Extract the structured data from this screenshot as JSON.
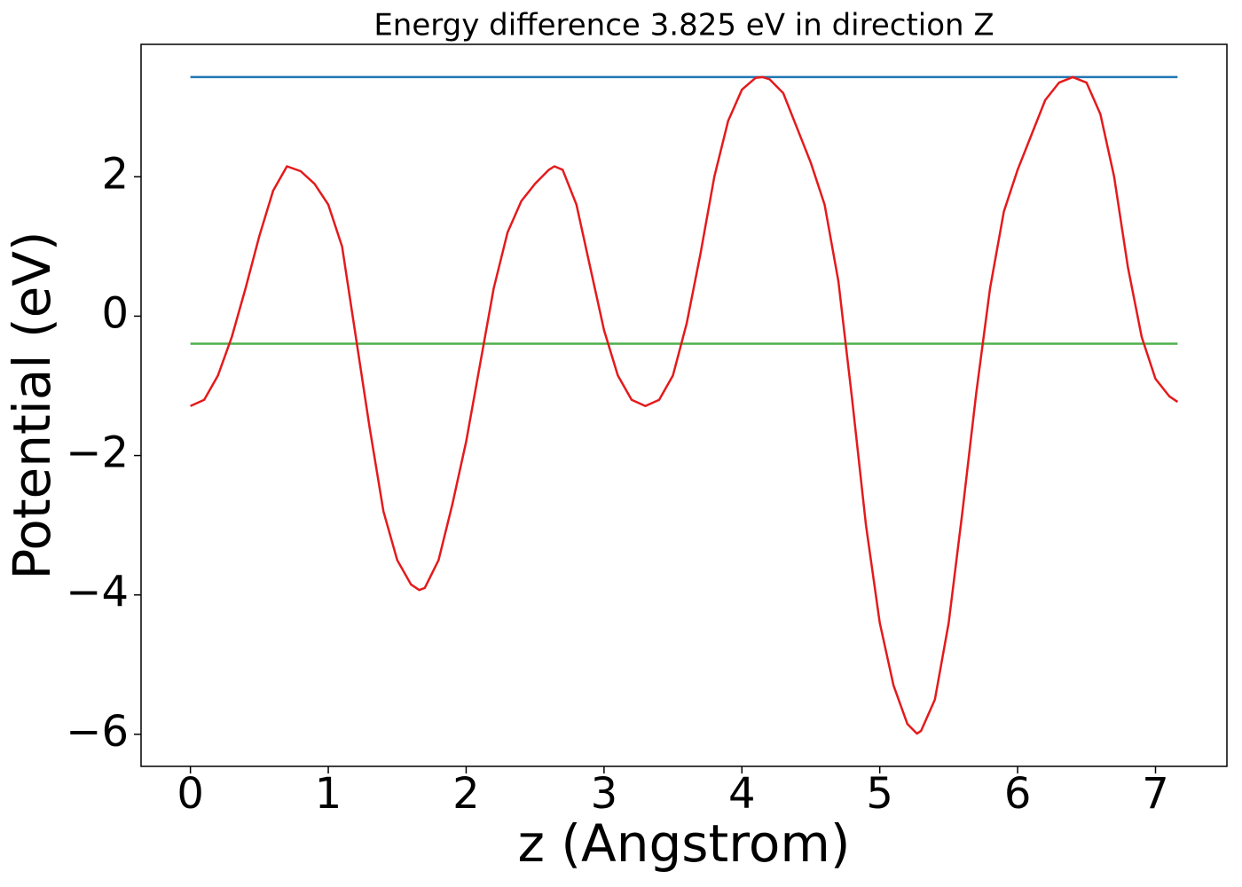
{
  "chart_data": {
    "type": "line",
    "title": "Energy difference 3.825 eV in direction Z",
    "xlabel": "z (Angstrom)",
    "ylabel": "Potential (eV)",
    "xlim": [
      -0.358,
      7.518
    ],
    "ylim": [
      -6.46,
      3.9
    ],
    "xticks": [
      0,
      1,
      2,
      3,
      4,
      5,
      6,
      7
    ],
    "yticks": [
      {
        "value": -6,
        "label": "−6"
      },
      {
        "value": -4,
        "label": "−4"
      },
      {
        "value": -2,
        "label": "−2"
      },
      0,
      2
    ],
    "series": [
      {
        "color": "#1f77b4",
        "x": [
          0,
          7.16
        ],
        "values": [
          3.43,
          3.43
        ]
      },
      {
        "color": "#4daf4a",
        "x": [
          0,
          7.16
        ],
        "values": [
          -0.395,
          -0.395
        ]
      },
      {
        "color": "#e41a1c",
        "x": [
          0,
          0.1,
          0.2,
          0.3,
          0.4,
          0.5,
          0.6,
          0.7,
          0.8,
          0.9,
          1.0,
          1.1,
          1.2,
          1.3,
          1.4,
          1.5,
          1.6,
          1.66,
          1.7,
          1.8,
          1.9,
          2.0,
          2.1,
          2.2,
          2.3,
          2.4,
          2.5,
          2.6,
          2.64,
          2.7,
          2.8,
          2.9,
          3.0,
          3.1,
          3.2,
          3.3,
          3.4,
          3.5,
          3.6,
          3.7,
          3.8,
          3.9,
          4.0,
          4.1,
          4.15,
          4.2,
          4.3,
          4.4,
          4.5,
          4.6,
          4.7,
          4.8,
          4.9,
          5.0,
          5.1,
          5.2,
          5.27,
          5.3,
          5.4,
          5.5,
          5.6,
          5.7,
          5.8,
          5.9,
          6.0,
          6.1,
          6.2,
          6.3,
          6.4,
          6.5,
          6.6,
          6.7,
          6.8,
          6.9,
          7.0,
          7.1,
          7.16
        ],
        "values": [
          -1.29,
          -1.2,
          -0.85,
          -0.3,
          0.4,
          1.15,
          1.8,
          2.15,
          2.08,
          1.9,
          1.6,
          1.0,
          -0.3,
          -1.6,
          -2.8,
          -3.5,
          -3.85,
          -3.93,
          -3.9,
          -3.5,
          -2.7,
          -1.8,
          -0.7,
          0.4,
          1.2,
          1.65,
          1.9,
          2.1,
          2.15,
          2.1,
          1.6,
          0.7,
          -0.2,
          -0.85,
          -1.2,
          -1.29,
          -1.2,
          -0.85,
          -0.1,
          0.9,
          2.0,
          2.8,
          3.25,
          3.42,
          3.43,
          3.4,
          3.2,
          2.7,
          2.2,
          1.6,
          0.5,
          -1.2,
          -3.0,
          -4.4,
          -5.3,
          -5.85,
          -5.99,
          -5.95,
          -5.5,
          -4.4,
          -2.8,
          -1.1,
          0.4,
          1.5,
          2.1,
          2.6,
          3.1,
          3.35,
          3.43,
          3.35,
          2.9,
          2.0,
          0.7,
          -0.3,
          -0.9,
          -1.15,
          -1.23
        ]
      }
    ]
  }
}
